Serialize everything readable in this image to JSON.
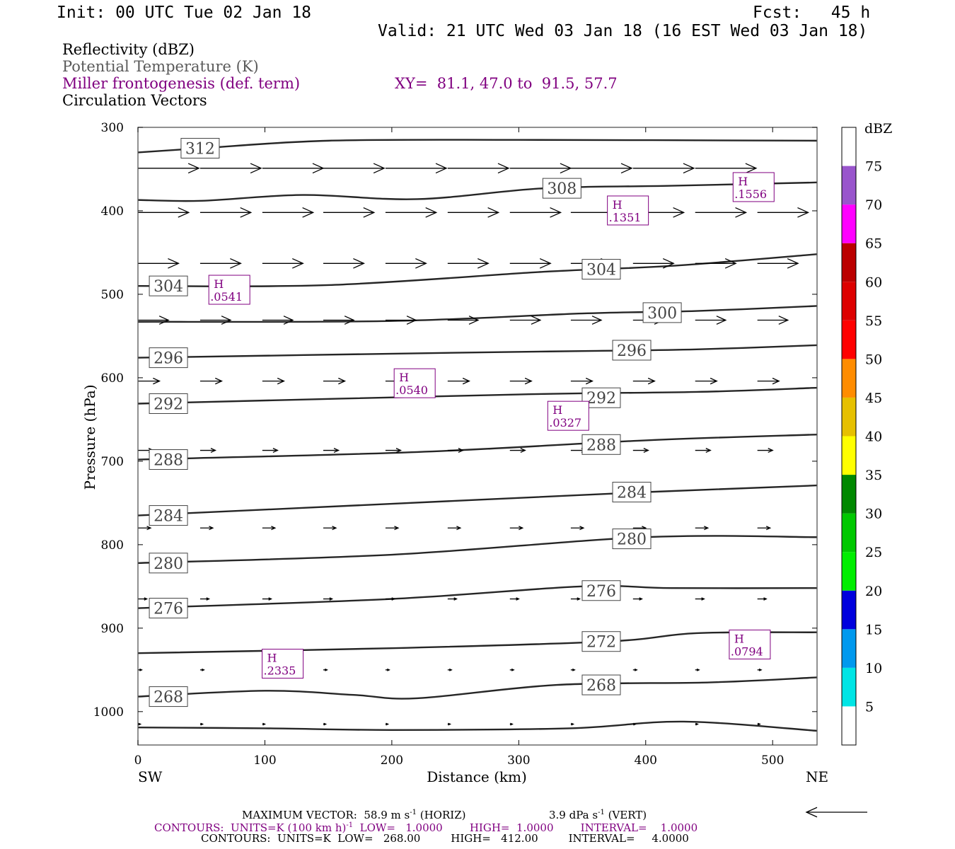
{
  "header": {
    "init": "Init: 00 UTC Tue 02 Jan 18",
    "fcst": "Fcst:   45 h",
    "valid": "Valid: 21 UTC Wed 03 Jan 18 (16 EST Wed 03 Jan 18)"
  },
  "fields": {
    "reflectivity": "Reflectivity (dBZ)",
    "theta": "Potential Temperature (K)",
    "frontogenesis": "Miller frontogenesis (def. term)",
    "xy": "XY=  81.1, 47.0 to  91.5, 57.7",
    "vectors": "Circulation Vectors"
  },
  "colors": {
    "theta": "#5a5a5a",
    "frontogenesis": "#800080",
    "contour_line": "#262626",
    "frame": "#555555"
  },
  "chart_data": {
    "type": "cross-section",
    "xlabel": "Distance (km)",
    "ylabel": "Pressure (hPa)",
    "xlim": [
      0,
      535
    ],
    "ylim": [
      1040,
      300
    ],
    "y_scale": "linear",
    "x_ticks": [
      0,
      100,
      200,
      300,
      400,
      500
    ],
    "y_ticks": [
      300,
      400,
      500,
      600,
      700,
      800,
      900,
      1000
    ],
    "x_end_labels": [
      "SW",
      "NE"
    ],
    "colorbar": {
      "unit": "dBZ",
      "levels": [
        5,
        10,
        15,
        20,
        25,
        30,
        35,
        40,
        45,
        50,
        55,
        60,
        65,
        70,
        75
      ],
      "colors": [
        "#ffffff",
        "#00e5e5",
        "#0099ee",
        "#0000dd",
        "#00ee00",
        "#00c800",
        "#008800",
        "#ffff00",
        "#e6c000",
        "#ff8c00",
        "#ff0000",
        "#dd0000",
        "#bb0000",
        "#ff00ff",
        "#9955cc",
        "#ffffff"
      ]
    },
    "theta_contours": [
      {
        "value": "312",
        "points": [
          [
            0,
            330
          ],
          [
            50,
            325
          ],
          [
            150,
            316
          ],
          [
            300,
            315
          ],
          [
            535,
            316
          ]
        ]
      },
      {
        "value": "308",
        "points": [
          [
            0,
            387
          ],
          [
            50,
            388
          ],
          [
            130,
            381
          ],
          [
            220,
            386
          ],
          [
            320,
            373
          ],
          [
            420,
            370
          ],
          [
            535,
            366
          ]
        ]
      },
      {
        "value": "304",
        "points": [
          [
            0,
            490
          ],
          [
            150,
            489
          ],
          [
            320,
            473
          ],
          [
            420,
            466
          ],
          [
            535,
            452
          ]
        ]
      },
      {
        "value": "300",
        "points": [
          [
            0,
            533
          ],
          [
            200,
            532
          ],
          [
            350,
            523
          ],
          [
            440,
            520
          ],
          [
            535,
            514
          ]
        ]
      },
      {
        "value": "296",
        "points": [
          [
            0,
            576
          ],
          [
            250,
            570
          ],
          [
            350,
            568
          ],
          [
            440,
            566
          ],
          [
            535,
            561
          ]
        ]
      },
      {
        "value": "292",
        "points": [
          [
            0,
            631
          ],
          [
            300,
            620
          ],
          [
            440,
            617
          ],
          [
            535,
            612
          ]
        ]
      },
      {
        "value": "288",
        "points": [
          [
            0,
            698
          ],
          [
            220,
            689
          ],
          [
            400,
            675
          ],
          [
            535,
            668
          ]
        ]
      },
      {
        "value": "284",
        "points": [
          [
            0,
            765
          ],
          [
            200,
            751
          ],
          [
            400,
            737
          ],
          [
            535,
            729
          ]
        ]
      },
      {
        "value": "280",
        "points": [
          [
            0,
            822
          ],
          [
            200,
            812
          ],
          [
            400,
            791
          ],
          [
            535,
            791
          ]
        ]
      },
      {
        "value": "276",
        "points": [
          [
            0,
            876
          ],
          [
            200,
            865
          ],
          [
            350,
            850
          ],
          [
            420,
            852
          ],
          [
            535,
            852
          ]
        ]
      },
      {
        "value": "272",
        "points": [
          [
            0,
            930
          ],
          [
            200,
            924
          ],
          [
            370,
            916
          ],
          [
            440,
            906
          ],
          [
            535,
            905
          ]
        ]
      },
      {
        "value": "268",
        "points": [
          [
            0,
            982
          ],
          [
            100,
            975
          ],
          [
            170,
            980
          ],
          [
            220,
            984
          ],
          [
            330,
            968
          ],
          [
            450,
            965
          ],
          [
            535,
            959
          ]
        ]
      },
      {
        "value": "",
        "points": [
          [
            0,
            1019
          ],
          [
            100,
            1020
          ],
          [
            200,
            1022
          ],
          [
            340,
            1020
          ],
          [
            430,
            1012
          ],
          [
            535,
            1023
          ]
        ]
      }
    ],
    "theta_labels": [
      {
        "text": "312",
        "x": 49,
        "p": 325
      },
      {
        "text": "308",
        "x": 334,
        "p": 373
      },
      {
        "text": "304",
        "x": 24,
        "p": 490
      },
      {
        "text": "304",
        "x": 365,
        "p": 470
      },
      {
        "text": "300",
        "x": 413,
        "p": 522
      },
      {
        "text": "296",
        "x": 24,
        "p": 576
      },
      {
        "text": "296",
        "x": 389,
        "p": 567
      },
      {
        "text": "292",
        "x": 24,
        "p": 631
      },
      {
        "text": "292",
        "x": 365,
        "p": 624
      },
      {
        "text": "288",
        "x": 24,
        "p": 698
      },
      {
        "text": "288",
        "x": 365,
        "p": 680
      },
      {
        "text": "284",
        "x": 24,
        "p": 765
      },
      {
        "text": "284",
        "x": 389,
        "p": 737
      },
      {
        "text": "280",
        "x": 24,
        "p": 822
      },
      {
        "text": "280",
        "x": 389,
        "p": 793
      },
      {
        "text": "276",
        "x": 24,
        "p": 876
      },
      {
        "text": "276",
        "x": 365,
        "p": 855
      },
      {
        "text": "272",
        "x": 365,
        "p": 916
      },
      {
        "text": "268",
        "x": 24,
        "p": 982
      },
      {
        "text": "268",
        "x": 365,
        "p": 968
      }
    ],
    "frontogenesis_maxima": [
      {
        "label": "H",
        "value": ".1556",
        "x": 485,
        "p": 372
      },
      {
        "label": "H",
        "value": ".1351",
        "x": 386,
        "p": 400
      },
      {
        "label": "H",
        "value": ".0541",
        "x": 72,
        "p": 495
      },
      {
        "label": "H",
        "value": ".0540",
        "x": 218,
        "p": 607
      },
      {
        "label": "H",
        "value": ".0327",
        "x": 339,
        "p": 646
      },
      {
        "label": "H",
        "value": ".0794",
        "x": 482,
        "p": 920
      },
      {
        "label": "H",
        "value": ".2335",
        "x": 114,
        "p": 943
      }
    ],
    "vector_rows": [
      {
        "p": 349,
        "length_km": 48
      },
      {
        "p": 402,
        "length_km": 40
      },
      {
        "p": 463,
        "length_km": 32
      },
      {
        "p": 531,
        "length_km": 24
      },
      {
        "p": 604,
        "length_km": 17
      },
      {
        "p": 687,
        "length_km": 12
      },
      {
        "p": 780,
        "length_km": 10
      },
      {
        "p": 865,
        "length_km": 7
      },
      {
        "p": 950,
        "length_km": 3
      },
      {
        "p": 1015,
        "length_km": 2
      }
    ],
    "vector_columns_km": [
      0,
      49,
      98,
      146,
      195,
      244,
      293,
      341,
      390,
      439,
      488
    ],
    "reference_vector": "left"
  },
  "footer": {
    "max_vector_a": "MAXIMUM VECTOR:  58.9 m s",
    "max_vector_b": " (HORIZ)",
    "max_vector_c": "3.9 dPa s",
    "max_vector_d": " (VERT)",
    "sup": "-1",
    "contours1_a": "CONTOURS:  UNITS=K (100 km h)",
    "contours1_b": "  LOW=   1.0000        HIGH=  1.0000        INTERVAL=    1.0000",
    "contours2": "CONTOURS:  UNITS=K  LOW=   268.00         HIGH=   412.00         INTERVAL=     4.0000"
  }
}
